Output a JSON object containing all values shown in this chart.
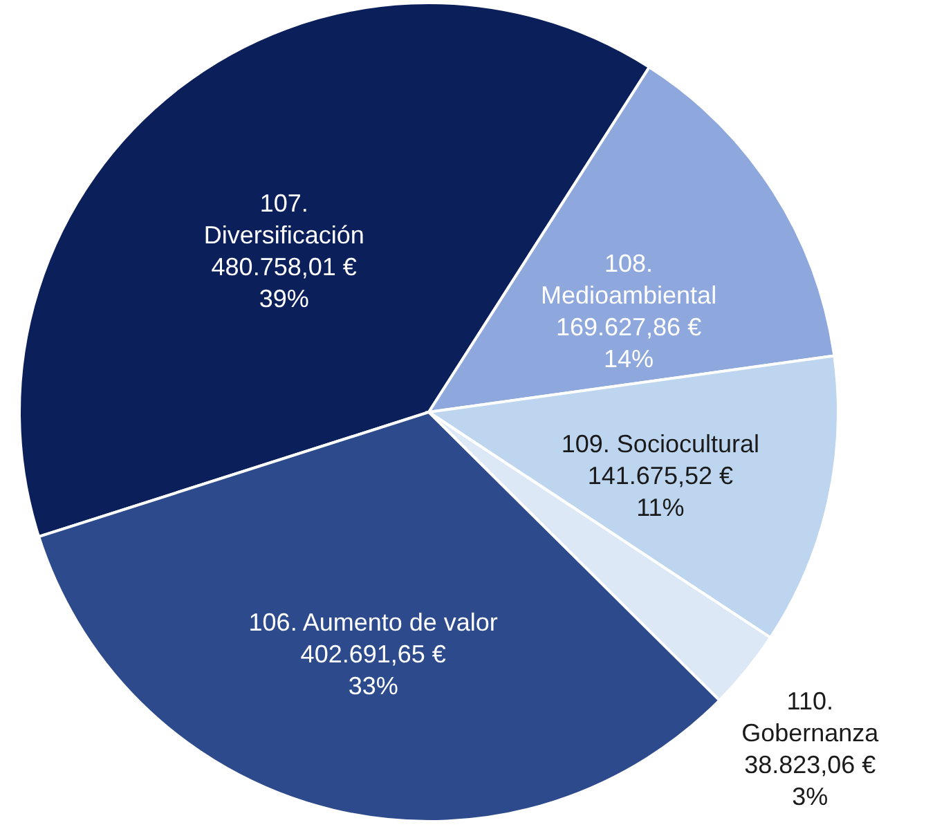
{
  "chart_data": {
    "type": "pie",
    "categories": [
      "107.\nDiversificación",
      "108.\nMedioambiental",
      "109. Sociocultural",
      "110.\nGobernanza",
      "106. Aumento de valor"
    ],
    "values": [
      480758.01,
      169627.86,
      141675.52,
      38823.06,
      402691.65
    ],
    "colors": [
      "#0b1f5b",
      "#8ea7dc",
      "#bdd5ee",
      "#dce8f6",
      "#2d4b8c"
    ],
    "value_labels": [
      "480.758,01 €\n39%",
      "169.627,86 €\n14%",
      "141.675,52 €\n11%",
      "38.823,06 €\n3%",
      "402.691,65 €\n33%"
    ]
  }
}
